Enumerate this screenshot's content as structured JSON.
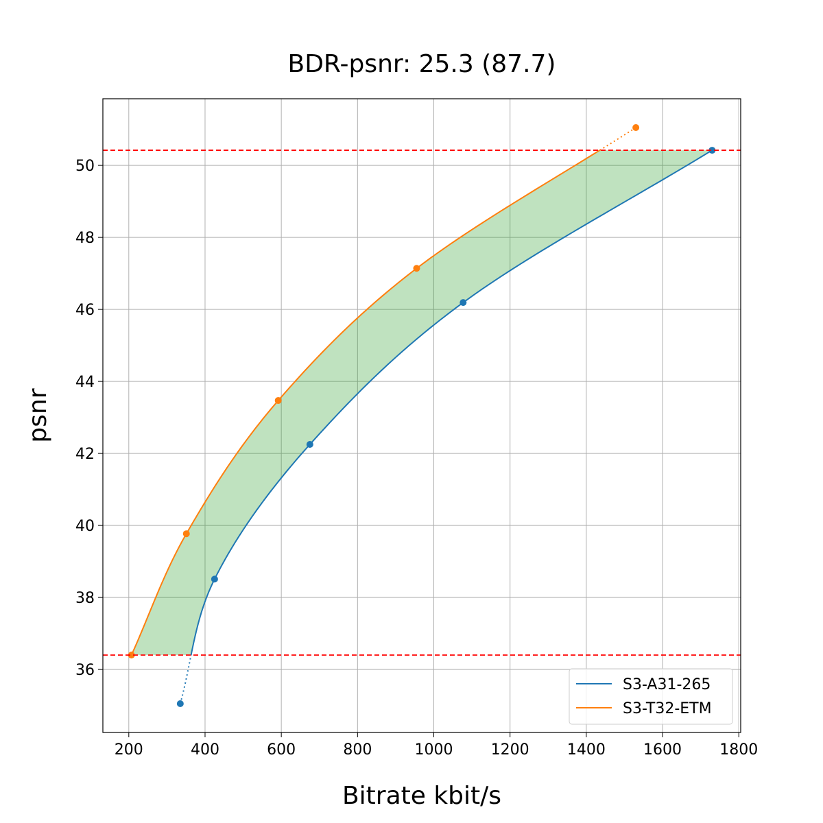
{
  "chart_data": {
    "type": "line",
    "title": "BDR-psnr: 25.3 (87.7)",
    "xlabel": "Bitrate kbit/s",
    "ylabel": "psnr",
    "xlim": [
      132,
      1805
    ],
    "ylim": [
      34.25,
      51.85
    ],
    "xticks": [
      200,
      400,
      600,
      800,
      1000,
      1200,
      1400,
      1600,
      1800
    ],
    "yticks": [
      36,
      38,
      40,
      42,
      44,
      46,
      48,
      50
    ],
    "grid": true,
    "legend_position": "lower-right",
    "hlines": [
      36.4,
      50.42
    ],
    "hline_color": "#ff0000",
    "fill_color": "#2ca02c",
    "series": [
      {
        "name": "S3-A31-265",
        "color": "#1f77b4",
        "x": [
          335,
          425,
          675,
          1077,
          1730
        ],
        "y": [
          35.05,
          38.51,
          42.25,
          46.19,
          50.42
        ]
      },
      {
        "name": "S3-T32-ETM",
        "color": "#ff7f0e",
        "x": [
          207,
          351,
          592,
          955,
          1530
        ],
        "y": [
          36.4,
          39.77,
          43.47,
          47.14,
          51.05
        ]
      }
    ]
  }
}
